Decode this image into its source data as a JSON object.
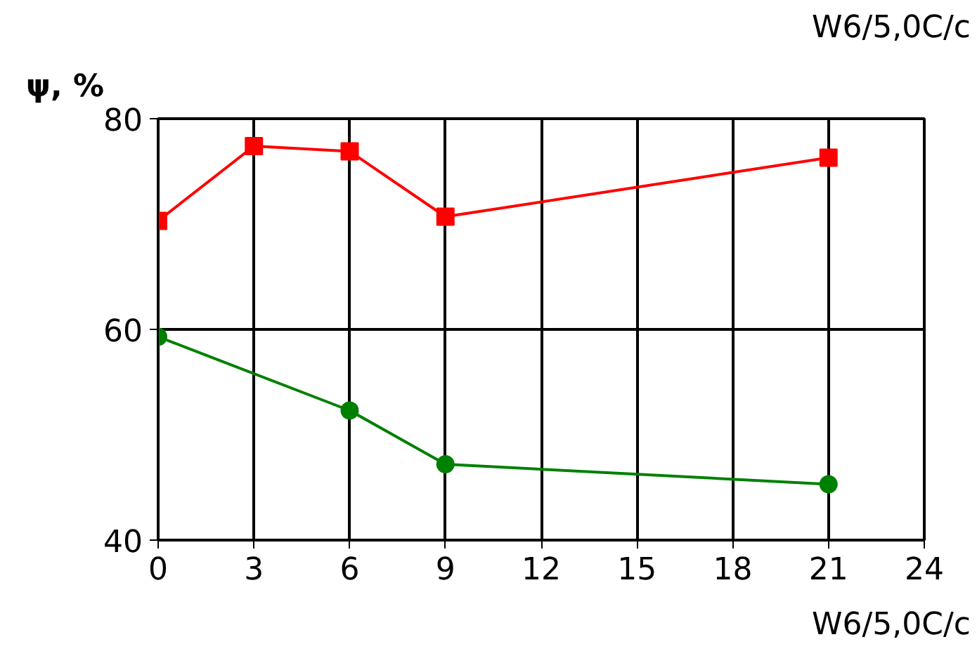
{
  "chart_data": {
    "type": "line",
    "ylabel": "ψ, %",
    "xlabel": "W6/5,0C/c",
    "annotations": [
      "W6/5,0C/c"
    ],
    "xlim": [
      0,
      24
    ],
    "xticks": [
      0,
      3,
      6,
      9,
      12,
      15,
      18,
      21,
      24
    ],
    "ylim": [
      40,
      80
    ],
    "yticks": [
      40,
      60,
      80
    ],
    "grid": true,
    "series": [
      {
        "color": "#ff0000",
        "marker": "square",
        "x": [
          0,
          3,
          6,
          9,
          21
        ],
        "values": [
          70.3,
          77.4,
          76.9,
          70.7,
          76.3
        ]
      },
      {
        "color": "#008000",
        "marker": "circle",
        "x": [
          0,
          6,
          9,
          21
        ],
        "values": [
          59.3,
          52.3,
          47.2,
          45.3
        ]
      }
    ]
  }
}
